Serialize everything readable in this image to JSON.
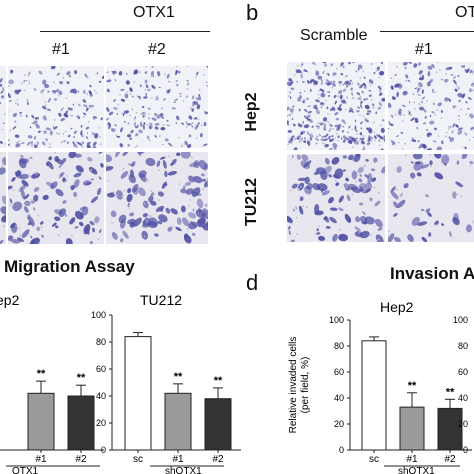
{
  "panel_a": {
    "group_label": "OTX1",
    "col1": "#1",
    "col2": "#2"
  },
  "panel_b": {
    "letter": "b",
    "scramble": "Scramble",
    "group_label_partial": "OT",
    "col1": "#1",
    "row1": "Hep2",
    "row2": "TU212"
  },
  "section_c_title": "Migration Assay",
  "section_d_letter": "d",
  "section_d_title": "Invasion As",
  "colors": {
    "stain": "#4f4fa3",
    "field_top": "#f1f1f8",
    "field_bottom": "#e8e6ee",
    "bar_grey": "#9a9a9a",
    "bar_dark": "#333333"
  },
  "chart_data": [
    {
      "type": "bar",
      "title": "ep2",
      "categories": [
        "#1",
        "#2"
      ],
      "values": [
        42,
        40
      ],
      "errors": [
        9,
        8
      ],
      "significance": [
        "**",
        "**"
      ],
      "fills": [
        "grey",
        "dark"
      ],
      "xgroup": "OTX1",
      "ylim": [
        0,
        100
      ]
    },
    {
      "type": "bar",
      "title": "TU212",
      "categories": [
        "sc",
        "#1",
        "#2"
      ],
      "values": [
        84,
        42,
        38
      ],
      "errors": [
        3,
        7,
        8
      ],
      "significance": [
        "",
        "**",
        "**"
      ],
      "fills": [
        "white",
        "grey",
        "dark"
      ],
      "xgroup": "shOTX1",
      "yticks": [
        "0",
        "20",
        "40",
        "60",
        "80",
        "100"
      ],
      "ylim": [
        0,
        100
      ]
    },
    {
      "type": "bar",
      "title": "Hep2",
      "ylabel": "Relative invaded cells\n(per field, %)",
      "categories": [
        "sc",
        "#1",
        "#2"
      ],
      "values": [
        84,
        33,
        32
      ],
      "errors": [
        3,
        11,
        7
      ],
      "significance": [
        "",
        "**",
        "**"
      ],
      "fills": [
        "white",
        "grey",
        "dark"
      ],
      "xgroup": "shOTX1",
      "yticks": [
        "0",
        "20",
        "40",
        "60",
        "80",
        "100"
      ],
      "ylim": [
        0,
        100
      ]
    },
    {
      "type": "bar",
      "title": "",
      "categories": [],
      "values": [],
      "yticks": [
        "0",
        "20",
        "40",
        "60",
        "80",
        "100"
      ],
      "ylim": [
        0,
        100
      ]
    }
  ]
}
